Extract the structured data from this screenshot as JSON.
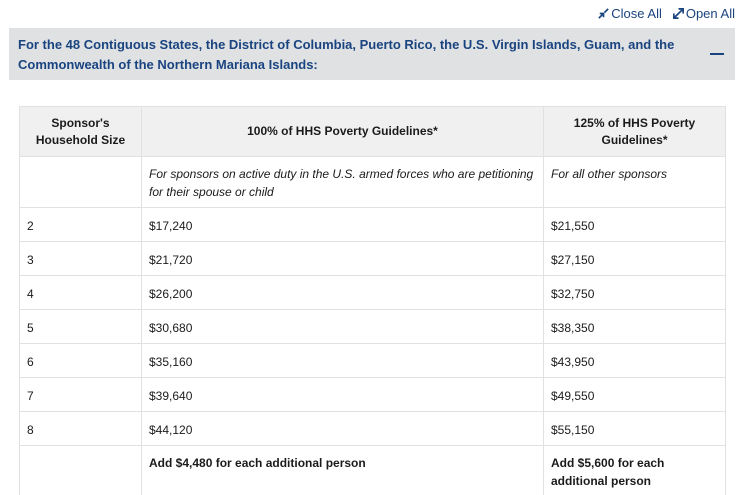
{
  "toolbar": {
    "close_all": "Close All",
    "open_all": "Open All"
  },
  "accordion": {
    "title": "For the 48 Contiguous States, the District of Columbia, Puerto Rico, the U.S. Virgin Islands, Guam, and the Commonwealth of the Northern Mariana Islands:"
  },
  "table": {
    "headers": [
      "Sponsor's Household Size",
      "100% of HHS Poverty Guidelines*",
      "125% of HHS Poverty Guidelines*"
    ],
    "notes": {
      "col1": "",
      "col2": "For sponsors on active duty in the U.S. armed forces who are petitioning for their spouse or child",
      "col3": "For all other sponsors"
    },
    "rows": [
      [
        "2",
        "$17,240",
        "$21,550"
      ],
      [
        "3",
        "$21,720",
        "$27,150"
      ],
      [
        "4",
        "$26,200",
        "$32,750"
      ],
      [
        "5",
        "$30,680",
        "$38,350"
      ],
      [
        "6",
        "$35,160",
        "$43,950"
      ],
      [
        "7",
        "$39,640",
        "$49,550"
      ],
      [
        "8",
        "$44,120",
        "$55,150"
      ]
    ],
    "footer": {
      "col1": "",
      "col2": "Add $4,480 for each additional person",
      "col3": "Add $5,600 for each additional person"
    }
  }
}
